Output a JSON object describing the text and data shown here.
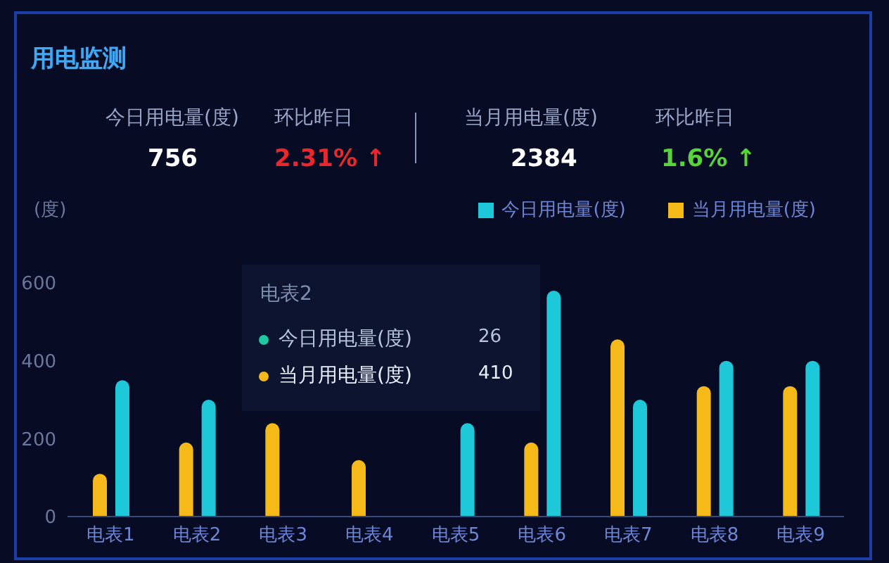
{
  "chart_data": {
    "type": "bar",
    "title": "用电监测",
    "ylabel": "(度)",
    "categories": [
      "电表1",
      "电表2",
      "电表3",
      "电表4",
      "电表5",
      "电表6",
      "电表7",
      "电表8",
      "电表9"
    ],
    "series": [
      {
        "name": "当月用电量(度)",
        "color": "#f5b91a",
        "values": [
          110,
          190,
          240,
          145,
          null,
          190,
          455,
          335,
          335
        ]
      },
      {
        "name": "今日用电量(度)",
        "color": "#1ec8d8",
        "values": [
          350,
          300,
          null,
          null,
          240,
          580,
          300,
          400,
          400
        ]
      }
    ],
    "ylim": [
      0,
      600
    ],
    "yticks": [
      0,
      200,
      400,
      600
    ],
    "grid": false,
    "legend": "top right",
    "annotations": [
      "今日用电量(度)",
      "756",
      "环比昨日",
      "2.31% ↑",
      "当月用电量(度)",
      "2384",
      "环比昨日",
      "1.6% ↑",
      "电表2",
      "今日用电量(度)",
      "26",
      "当月用电量(度)",
      "410"
    ]
  }
}
